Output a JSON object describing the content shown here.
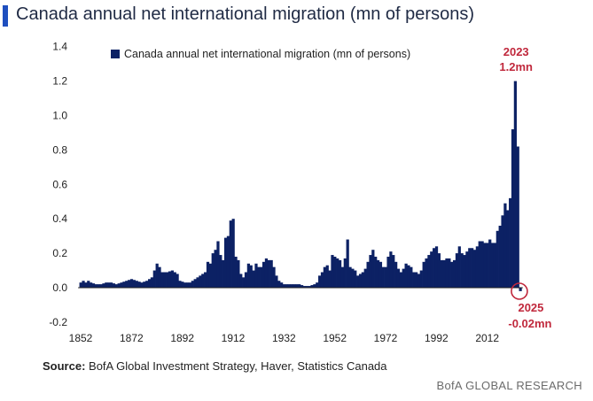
{
  "title": "Canada annual net international migration (mn of persons)",
  "source_label": "Source:",
  "source_text": "BofA Global Investment Strategy, Haver, Statistics Canada",
  "brand": "BofA GLOBAL RESEARCH",
  "colors": {
    "bar": "#0c2164",
    "accent": "#c0283c",
    "title_bar": "#1f4fbf"
  },
  "chart_data": {
    "type": "bar",
    "title": "Canada annual net international migration (mn of persons)",
    "legend": [
      "Canada annual net international migration (mn of persons)"
    ],
    "legend_position": "top",
    "xlabel": "",
    "ylabel": "",
    "ylim": [
      -0.2,
      1.4
    ],
    "yticks": [
      -0.2,
      0.0,
      0.2,
      0.4,
      0.6,
      0.8,
      1.0,
      1.2,
      1.4
    ],
    "ytick_labels": [
      "-0.2",
      "0.0",
      "0.2",
      "0.4",
      "0.6",
      "0.8",
      "1.0",
      "1.2",
      "1.4"
    ],
    "xlim": [
      1851,
      2026
    ],
    "xticks": [
      1852,
      1872,
      1892,
      1912,
      1932,
      1952,
      1972,
      1992,
      2012
    ],
    "anchors": [
      [
        1852,
        0.03
      ],
      [
        1853,
        0.04
      ],
      [
        1854,
        0.03
      ],
      [
        1855,
        0.04
      ],
      [
        1856,
        0.03
      ],
      [
        1858,
        0.02
      ],
      [
        1860,
        0.02
      ],
      [
        1862,
        0.03
      ],
      [
        1864,
        0.03
      ],
      [
        1866,
        0.02
      ],
      [
        1868,
        0.03
      ],
      [
        1870,
        0.04
      ],
      [
        1872,
        0.05
      ],
      [
        1874,
        0.04
      ],
      [
        1876,
        0.03
      ],
      [
        1878,
        0.04
      ],
      [
        1880,
        0.06
      ],
      [
        1881,
        0.1
      ],
      [
        1882,
        0.14
      ],
      [
        1883,
        0.12
      ],
      [
        1884,
        0.09
      ],
      [
        1886,
        0.09
      ],
      [
        1888,
        0.1
      ],
      [
        1890,
        0.08
      ],
      [
        1891,
        0.04
      ],
      [
        1893,
        0.03
      ],
      [
        1895,
        0.03
      ],
      [
        1897,
        0.05
      ],
      [
        1899,
        0.07
      ],
      [
        1901,
        0.09
      ],
      [
        1902,
        0.15
      ],
      [
        1903,
        0.14
      ],
      [
        1904,
        0.2
      ],
      [
        1905,
        0.22
      ],
      [
        1906,
        0.27
      ],
      [
        1907,
        0.19
      ],
      [
        1908,
        0.16
      ],
      [
        1909,
        0.29
      ],
      [
        1910,
        0.3
      ],
      [
        1911,
        0.39
      ],
      [
        1912,
        0.4
      ],
      [
        1913,
        0.18
      ],
      [
        1914,
        0.16
      ],
      [
        1915,
        0.08
      ],
      [
        1916,
        0.06
      ],
      [
        1917,
        0.09
      ],
      [
        1918,
        0.14
      ],
      [
        1919,
        0.13
      ],
      [
        1920,
        0.1
      ],
      [
        1921,
        0.14
      ],
      [
        1922,
        0.12
      ],
      [
        1923,
        0.12
      ],
      [
        1924,
        0.15
      ],
      [
        1925,
        0.17
      ],
      [
        1926,
        0.16
      ],
      [
        1927,
        0.16
      ],
      [
        1928,
        0.12
      ],
      [
        1929,
        0.07
      ],
      [
        1930,
        0.04
      ],
      [
        1932,
        0.02
      ],
      [
        1934,
        0.02
      ],
      [
        1936,
        0.02
      ],
      [
        1938,
        0.02
      ],
      [
        1940,
        0.01
      ],
      [
        1942,
        0.01
      ],
      [
        1944,
        0.02
      ],
      [
        1945,
        0.03
      ],
      [
        1946,
        0.07
      ],
      [
        1947,
        0.09
      ],
      [
        1948,
        0.12
      ],
      [
        1949,
        0.13
      ],
      [
        1950,
        0.1
      ],
      [
        1951,
        0.19
      ],
      [
        1952,
        0.18
      ],
      [
        1953,
        0.17
      ],
      [
        1954,
        0.16
      ],
      [
        1955,
        0.12
      ],
      [
        1956,
        0.17
      ],
      [
        1957,
        0.28
      ],
      [
        1958,
        0.12
      ],
      [
        1959,
        0.11
      ],
      [
        1960,
        0.1
      ],
      [
        1961,
        0.07
      ],
      [
        1962,
        0.08
      ],
      [
        1963,
        0.09
      ],
      [
        1964,
        0.11
      ],
      [
        1965,
        0.15
      ],
      [
        1966,
        0.19
      ],
      [
        1967,
        0.22
      ],
      [
        1968,
        0.18
      ],
      [
        1969,
        0.16
      ],
      [
        1970,
        0.15
      ],
      [
        1971,
        0.12
      ],
      [
        1972,
        0.12
      ],
      [
        1973,
        0.18
      ],
      [
        1974,
        0.21
      ],
      [
        1975,
        0.19
      ],
      [
        1976,
        0.15
      ],
      [
        1977,
        0.11
      ],
      [
        1978,
        0.09
      ],
      [
        1979,
        0.11
      ],
      [
        1980,
        0.14
      ],
      [
        1981,
        0.13
      ],
      [
        1982,
        0.12
      ],
      [
        1983,
        0.09
      ],
      [
        1984,
        0.09
      ],
      [
        1985,
        0.08
      ],
      [
        1986,
        0.1
      ],
      [
        1987,
        0.15
      ],
      [
        1988,
        0.17
      ],
      [
        1989,
        0.19
      ],
      [
        1990,
        0.21
      ],
      [
        1991,
        0.23
      ],
      [
        1992,
        0.24
      ],
      [
        1993,
        0.2
      ],
      [
        1994,
        0.16
      ],
      [
        1995,
        0.16
      ],
      [
        1996,
        0.17
      ],
      [
        1997,
        0.17
      ],
      [
        1998,
        0.15
      ],
      [
        1999,
        0.16
      ],
      [
        2000,
        0.2
      ],
      [
        2001,
        0.24
      ],
      [
        2002,
        0.2
      ],
      [
        2003,
        0.19
      ],
      [
        2004,
        0.21
      ],
      [
        2005,
        0.23
      ],
      [
        2006,
        0.23
      ],
      [
        2007,
        0.22
      ],
      [
        2008,
        0.24
      ],
      [
        2009,
        0.27
      ],
      [
        2010,
        0.27
      ],
      [
        2011,
        0.26
      ],
      [
        2012,
        0.26
      ],
      [
        2013,
        0.28
      ],
      [
        2014,
        0.26
      ],
      [
        2015,
        0.26
      ],
      [
        2016,
        0.33
      ],
      [
        2017,
        0.36
      ],
      [
        2018,
        0.42
      ],
      [
        2019,
        0.49
      ],
      [
        2020,
        0.45
      ],
      [
        2021,
        0.52
      ],
      [
        2022,
        0.92
      ],
      [
        2023,
        1.2
      ],
      [
        2024,
        0.82
      ],
      [
        2025,
        -0.02
      ]
    ],
    "annotations": [
      {
        "year": 2023,
        "label_year": "2023",
        "label_value": "1.2mn"
      },
      {
        "year": 2025,
        "label_year": "2025",
        "label_value": "-0.02mn"
      }
    ]
  }
}
